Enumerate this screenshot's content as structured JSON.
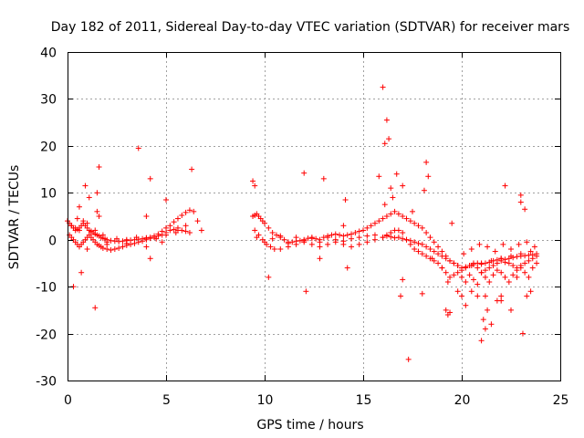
{
  "chart_data": {
    "type": "scatter",
    "title": "Day 182 of 2011, Sidereal Day-to-day VTEC variation (SDTVAR) for receiver mars",
    "xlabel": "GPS time / hours",
    "ylabel": "SDTVAR / TECUs",
    "xlim": [
      0,
      25
    ],
    "ylim": [
      -30,
      40
    ],
    "xticks": [
      0,
      5,
      10,
      15,
      20,
      25
    ],
    "yticks": [
      -30,
      -20,
      -10,
      0,
      10,
      20,
      30,
      40
    ],
    "grid": true,
    "marker": "+",
    "series_color": "#ff0000",
    "series": [
      {
        "name": "SDTVAR",
        "x": [
          0.0,
          0.1,
          0.2,
          0.3,
          0.4,
          0.5,
          0.6,
          0.7,
          0.8,
          0.9,
          1.0,
          1.1,
          1.2,
          1.3,
          1.4,
          1.5,
          1.6,
          1.7,
          1.8,
          1.9,
          2.0,
          2.2,
          2.4,
          2.6,
          2.8,
          3.0,
          3.2,
          3.4,
          3.6,
          3.8,
          4.0,
          4.2,
          4.4,
          4.6,
          4.8,
          5.0,
          5.2,
          5.4,
          5.6,
          5.8,
          6.0,
          6.2,
          6.4,
          6.6,
          6.8,
          0.1,
          0.2,
          0.3,
          0.4,
          0.5,
          0.6,
          0.7,
          0.8,
          0.9,
          1.0,
          1.1,
          1.2,
          1.3,
          1.4,
          1.5,
          1.6,
          1.7,
          1.8,
          2.0,
          2.2,
          2.4,
          2.6,
          2.8,
          3.0,
          3.2,
          3.4,
          3.6,
          3.8,
          4.0,
          4.2,
          4.4,
          4.6,
          4.8,
          5.0,
          5.2,
          5.4,
          5.6,
          5.8,
          6.0,
          6.2,
          0.2,
          0.4,
          0.6,
          0.8,
          1.0,
          1.2,
          1.4,
          1.6,
          1.8,
          2.0,
          2.5,
          3.0,
          3.5,
          4.0,
          4.5,
          5.0,
          5.5,
          6.0,
          0.5,
          1.0,
          1.5,
          2.0,
          3.0,
          4.0,
          4.8,
          5.6,
          0.3,
          0.6,
          0.9,
          1.4,
          1.6,
          3.6,
          4.0,
          4.2,
          5.0,
          6.3,
          0.7,
          1.1,
          1.5,
          4.2,
          9.4,
          9.5,
          9.6,
          9.7,
          9.8,
          9.9,
          10.0,
          10.2,
          10.4,
          10.6,
          10.8,
          11.0,
          11.2,
          11.4,
          11.6,
          11.8,
          12.0,
          12.2,
          12.4,
          12.6,
          12.8,
          13.0,
          13.2,
          13.4,
          13.6,
          13.8,
          14.0,
          14.2,
          14.4,
          14.6,
          14.8,
          15.0,
          15.2,
          15.4,
          15.6,
          15.8,
          16.0,
          16.2,
          16.4,
          16.6,
          16.8,
          17.0,
          17.2,
          17.4,
          17.6,
          17.8,
          18.0,
          18.2,
          18.4,
          18.6,
          18.8,
          19.0,
          19.2,
          19.4,
          19.6,
          19.8,
          20.0,
          20.2,
          20.4,
          20.6,
          20.8,
          21.0,
          21.2,
          21.4,
          21.6,
          21.8,
          22.0,
          22.2,
          22.4,
          22.6,
          22.8,
          23.0,
          23.2,
          23.4,
          23.6,
          23.8,
          9.5,
          9.7,
          9.9,
          10.1,
          10.3,
          10.5,
          10.8,
          11.2,
          11.6,
          12.0,
          12.4,
          12.8,
          13.2,
          13.6,
          14.0,
          14.4,
          14.8,
          15.2,
          15.6,
          16.0,
          16.2,
          16.4,
          16.6,
          16.8,
          17.0,
          17.2,
          17.4,
          17.6,
          17.8,
          18.0,
          18.2,
          18.4,
          18.6,
          18.8,
          19.0,
          19.2,
          19.4,
          19.6,
          19.8,
          20.0,
          20.2,
          20.4,
          20.6,
          20.8,
          21.0,
          21.2,
          21.4,
          21.6,
          21.8,
          22.0,
          22.2,
          22.4,
          22.6,
          22.8,
          23.0,
          23.2,
          23.4,
          23.6,
          23.8,
          9.6,
          10.0,
          10.4,
          10.8,
          11.2,
          11.6,
          12.0,
          12.4,
          12.8,
          13.2,
          13.6,
          14.0,
          14.4,
          14.8,
          15.2,
          15.6,
          16.0,
          16.2,
          16.4,
          16.6,
          16.8,
          17.0,
          17.2,
          17.4,
          17.6,
          17.8,
          18.0,
          18.2,
          18.4,
          18.6,
          18.8,
          19.0,
          19.2,
          19.4,
          19.6,
          19.8,
          20.0,
          20.5,
          21.0,
          21.5,
          22.0,
          22.5,
          23.0,
          23.5,
          20.0,
          20.2,
          20.4,
          20.6,
          20.8,
          21.0,
          21.2,
          21.4,
          21.6,
          21.8,
          22.0,
          22.2,
          22.4,
          22.6,
          22.8,
          23.0,
          23.2,
          23.4,
          23.6,
          23.8,
          20.1,
          20.5,
          20.9,
          21.3,
          21.7,
          22.1,
          22.5,
          22.9,
          23.3,
          23.7,
          9.4,
          9.5,
          10.2,
          12.0,
          12.1,
          12.8,
          13.0,
          14.0,
          14.1,
          14.2,
          15.8,
          16.0,
          16.1,
          16.2,
          16.3,
          16.4,
          16.5,
          16.9,
          17.0,
          17.3,
          17.5,
          18.0,
          18.2,
          18.3,
          18.5,
          19.0,
          19.2,
          19.3,
          19.5,
          19.8,
          20.0,
          20.2,
          20.5,
          20.8,
          21.0,
          21.1,
          21.2,
          21.5,
          21.8,
          22.0,
          22.2,
          22.5,
          22.8,
          23.0,
          23.1,
          23.2,
          23.3,
          23.5,
          17.0,
          18.1,
          16.1,
          16.7,
          19.3,
          19.4,
          21.2,
          21.3,
          22.0,
          23.0
        ],
        "y": [
          4.0,
          3.5,
          3.0,
          2.5,
          2.0,
          2.2,
          2.5,
          3.0,
          3.5,
          3.0,
          2.5,
          2.0,
          1.8,
          1.5,
          1.2,
          1.0,
          0.8,
          0.5,
          0.3,
          0.2,
          0.0,
          -0.2,
          -0.3,
          -0.4,
          -0.3,
          -0.2,
          -0.1,
          0.0,
          0.1,
          0.2,
          0.3,
          0.5,
          0.8,
          1.2,
          1.8,
          2.5,
          3.0,
          3.8,
          4.5,
          5.2,
          5.8,
          6.3,
          6.0,
          4.0,
          2.0,
          1.0,
          0.5,
          0.0,
          -0.5,
          -1.0,
          -1.5,
          -1.0,
          -0.5,
          0.0,
          0.5,
          1.0,
          0.5,
          0.0,
          -0.5,
          -1.0,
          -1.2,
          -1.5,
          -1.8,
          -2.0,
          -2.2,
          -2.0,
          -1.8,
          -1.5,
          -1.2,
          -1.0,
          -0.8,
          -0.5,
          -0.3,
          0.0,
          0.3,
          0.5,
          0.8,
          1.0,
          1.5,
          2.0,
          2.2,
          2.5,
          2.0,
          1.8,
          1.5,
          3.0,
          2.5,
          2.0,
          4.0,
          3.5,
          1.5,
          2.0,
          5.0,
          1.0,
          -0.5,
          0.2,
          0.0,
          0.5,
          0.4,
          0.2,
          1.0,
          1.5,
          3.0,
          4.5,
          -2.0,
          6.0,
          -1.0,
          -0.8,
          -1.5,
          -0.5,
          2.0,
          -10.0,
          7.0,
          11.5,
          -14.5,
          15.5,
          19.5,
          5.0,
          -4.0,
          8.5,
          15.0,
          -7.0,
          9.0,
          10.0,
          13.0,
          5.0,
          5.2,
          5.5,
          5.0,
          4.5,
          4.0,
          3.5,
          2.5,
          1.5,
          1.0,
          0.5,
          0.0,
          -0.5,
          -0.5,
          -0.3,
          -0.2,
          0.0,
          0.3,
          0.5,
          0.2,
          0.0,
          0.5,
          0.8,
          1.0,
          1.2,
          1.0,
          0.8,
          1.0,
          1.2,
          1.5,
          1.8,
          2.0,
          2.5,
          3.0,
          3.5,
          4.0,
          4.5,
          5.0,
          5.5,
          6.0,
          5.5,
          5.0,
          4.5,
          4.0,
          3.5,
          3.0,
          2.5,
          1.5,
          0.5,
          -0.5,
          -1.5,
          -2.5,
          -3.5,
          -4.5,
          -5.0,
          -5.5,
          -6.0,
          -5.8,
          -5.5,
          -5.3,
          -5.0,
          -5.2,
          -5.0,
          -4.8,
          -4.5,
          -4.3,
          -4.0,
          -4.2,
          -4.0,
          -3.8,
          -3.6,
          -3.5,
          -3.4,
          -3.3,
          -3.2,
          -3.0,
          2.0,
          1.0,
          0.0,
          -1.0,
          -1.5,
          -2.0,
          -2.0,
          -1.5,
          -1.0,
          -0.5,
          -1.0,
          -1.5,
          -1.0,
          -0.5,
          -1.0,
          -1.5,
          -1.0,
          -0.5,
          0.0,
          0.5,
          1.0,
          1.5,
          2.0,
          2.0,
          1.5,
          0.0,
          -1.0,
          -2.0,
          -2.5,
          -3.0,
          -3.5,
          -4.0,
          -4.5,
          -5.0,
          -6.0,
          -7.0,
          -8.0,
          -7.5,
          -7.0,
          -6.5,
          -6.0,
          -5.5,
          -5.0,
          -6.0,
          -7.0,
          -6.5,
          -6.0,
          -5.5,
          -5.0,
          -4.5,
          -4.8,
          -5.0,
          -5.5,
          -6.0,
          -5.5,
          -5.0,
          -4.5,
          -4.0,
          -3.5,
          0.5,
          -0.5,
          0.2,
          0.8,
          -0.8,
          0.5,
          -0.2,
          0.3,
          -0.5,
          0.5,
          0.0,
          -0.3,
          0.2,
          0.5,
          0.8,
          1.0,
          0.5,
          0.8,
          0.6,
          0.4,
          0.5,
          0.2,
          0.0,
          -0.2,
          -0.5,
          -0.8,
          -1.0,
          -1.5,
          -2.0,
          -2.5,
          -3.0,
          -3.5,
          -4.0,
          -4.5,
          -5.0,
          -5.5,
          -6.0,
          -5.5,
          -5.0,
          -4.5,
          -4.0,
          -3.5,
          -3.0,
          -2.5,
          -8.0,
          -9.0,
          -7.5,
          -8.5,
          -9.5,
          -7.0,
          -8.0,
          -9.0,
          -7.5,
          -6.5,
          -7.0,
          -8.0,
          -9.0,
          -7.5,
          -6.5,
          -6.0,
          -7.0,
          -8.0,
          -6.0,
          -5.0,
          -3.0,
          -2.0,
          -1.0,
          -1.5,
          -2.5,
          -1.0,
          -2.0,
          -1.0,
          -0.5,
          -1.5,
          12.5,
          11.5,
          -8.0,
          14.2,
          -11.0,
          -4.0,
          13.0,
          3.0,
          8.5,
          -6.0,
          13.5,
          32.5,
          20.5,
          25.5,
          21.5,
          11.0,
          9.0,
          -12.0,
          11.5,
          -25.5,
          6.0,
          -11.5,
          16.5,
          13.5,
          -4.0,
          -6.0,
          -15.0,
          -16.0,
          3.5,
          -11.0,
          -12.0,
          -14.0,
          -11.0,
          -12.0,
          -21.5,
          -17.0,
          -12.0,
          -18.0,
          -13.0,
          -12.0,
          11.5,
          -15.0,
          -8.0,
          9.5,
          -20.0,
          6.5,
          -12.0,
          -11.0,
          -8.5,
          10.5,
          7.5,
          14.0,
          -9.0,
          -15.5,
          -19.0,
          -15.0,
          -13.0,
          8.0
        ]
      }
    ]
  }
}
